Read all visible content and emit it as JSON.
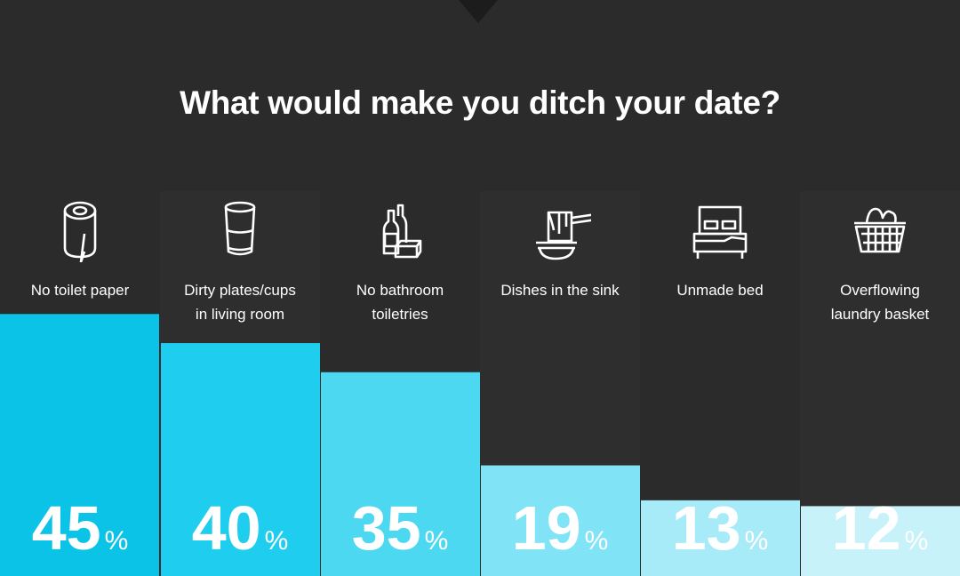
{
  "chart_data": {
    "type": "bar",
    "title": "What would make you ditch your date?",
    "categories": [
      [
        "No toilet paper"
      ],
      [
        "Dirty plates/cups",
        "in living room"
      ],
      [
        "No bathroom",
        "toiletries"
      ],
      [
        "Dishes in the sink"
      ],
      [
        "Unmade bed"
      ],
      [
        "Overflowing",
        "laundry basket"
      ]
    ],
    "values": [
      45,
      40,
      35,
      19,
      13,
      12
    ],
    "value_labels": [
      "45",
      "40",
      "35",
      "19",
      "13",
      "12"
    ],
    "unit": "%",
    "icons": [
      "toilet-paper-icon",
      "cup-icon",
      "toiletries-icon",
      "dishes-icon",
      "bed-icon",
      "laundry-basket-icon"
    ],
    "colors": [
      "#0bc2e7",
      "#1fcdee",
      "#4cd8f1",
      "#80e3f6",
      "#a8ebf8",
      "#c7f2fa"
    ],
    "background": "#2b2b2b",
    "ylim": [
      0,
      100
    ],
    "grid": false
  }
}
